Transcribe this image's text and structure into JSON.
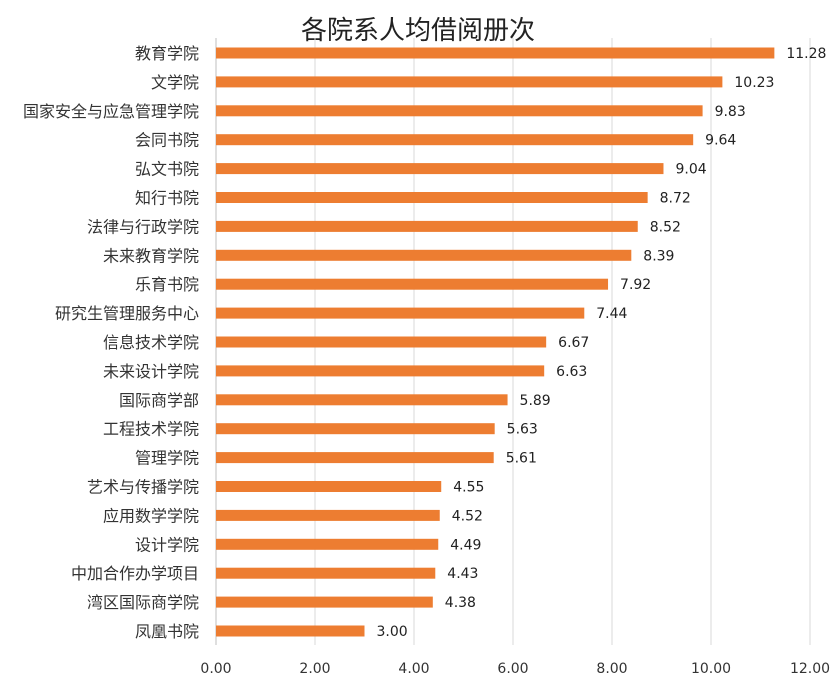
{
  "chart_data": {
    "type": "bar",
    "orientation": "horizontal",
    "title": "各院系人均借阅册次",
    "xlabel": "",
    "ylabel": "",
    "xlim": [
      0,
      12
    ],
    "x_ticks": [
      "0.00",
      "2.00",
      "4.00",
      "6.00",
      "8.00",
      "10.00",
      "12.00"
    ],
    "grid": "vertical",
    "legend": "none",
    "bar_color": "#ED7D31",
    "categories": [
      "教育学院",
      "文学院",
      "国家安全与应急管理学院",
      "会同书院",
      "弘文书院",
      "知行书院",
      "法律与行政学院",
      "未来教育学院",
      "乐育书院",
      "研究生管理服务中心",
      "信息技术学院",
      "未来设计学院",
      "国际商学部",
      "工程技术学院",
      "管理学院",
      "艺术与传播学院",
      "应用数学学院",
      "设计学院",
      "中加合作办学项目",
      "湾区国际商学院",
      "凤凰书院"
    ],
    "values": [
      11.28,
      10.23,
      9.83,
      9.64,
      9.04,
      8.72,
      8.52,
      8.39,
      7.92,
      7.44,
      6.67,
      6.63,
      5.89,
      5.63,
      5.61,
      4.55,
      4.52,
      4.49,
      4.43,
      4.38,
      3.0
    ],
    "data_labels": [
      "11.28",
      "10.23",
      "9.83",
      "9.64",
      "9.04",
      "8.72",
      "8.52",
      "8.39",
      "7.92",
      "7.44",
      "6.67",
      "6.63",
      "5.89",
      "5.63",
      "5.61",
      "4.55",
      "4.52",
      "4.49",
      "4.43",
      "4.38",
      "3.00"
    ]
  }
}
